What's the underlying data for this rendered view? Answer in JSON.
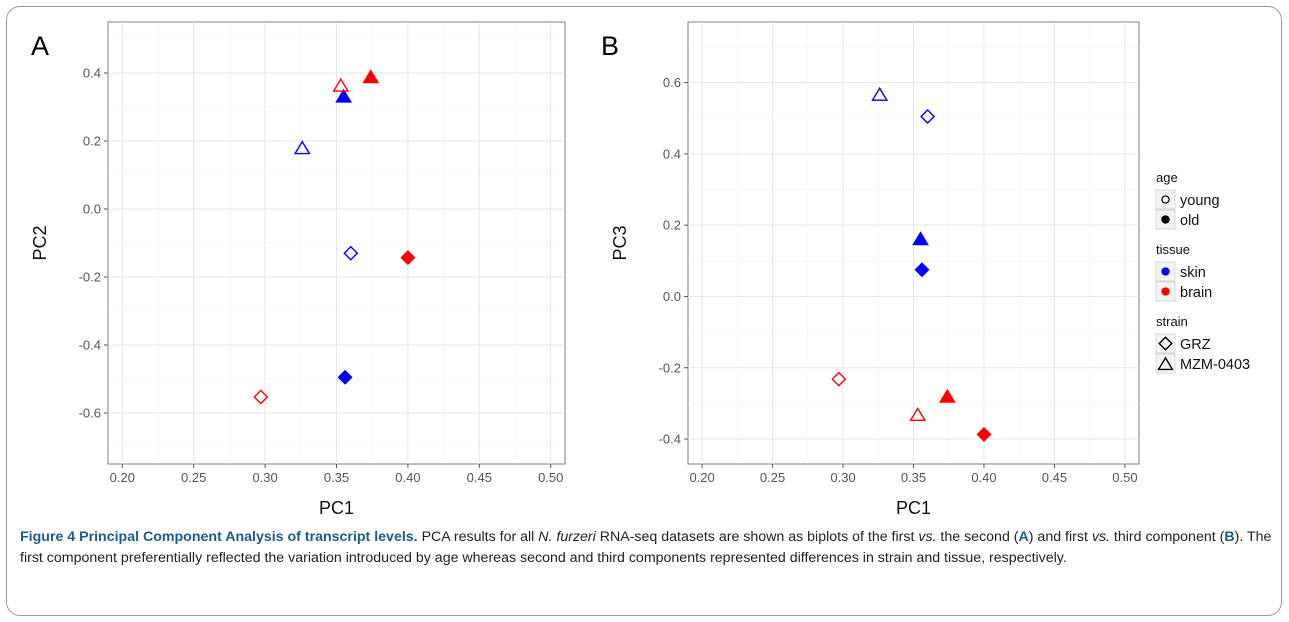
{
  "chart_data": [
    {
      "type": "scatter",
      "panel_label": "A",
      "xlabel": "PC1",
      "ylabel": "PC2",
      "xlim": [
        0.19,
        0.51
      ],
      "ylim": [
        -0.75,
        0.55
      ],
      "xticks": [
        "0.20",
        "0.25",
        "0.30",
        "0.35",
        "0.40",
        "0.45",
        "0.50"
      ],
      "yticks": [
        "-0.6",
        "-0.4",
        "-0.2",
        "0.0",
        "0.2",
        "0.4"
      ],
      "grid": true,
      "points": [
        {
          "x": 0.326,
          "y": 0.178,
          "age": "young",
          "tissue": "skin",
          "strain": "MZM-0403"
        },
        {
          "x": 0.36,
          "y": -0.13,
          "age": "young",
          "tissue": "skin",
          "strain": "GRZ"
        },
        {
          "x": 0.355,
          "y": 0.33,
          "age": "old",
          "tissue": "skin",
          "strain": "MZM-0403"
        },
        {
          "x": 0.356,
          "y": -0.495,
          "age": "old",
          "tissue": "skin",
          "strain": "GRZ"
        },
        {
          "x": 0.353,
          "y": 0.362,
          "age": "young",
          "tissue": "brain",
          "strain": "MZM-0403"
        },
        {
          "x": 0.297,
          "y": -0.553,
          "age": "young",
          "tissue": "brain",
          "strain": "GRZ"
        },
        {
          "x": 0.374,
          "y": 0.387,
          "age": "old",
          "tissue": "brain",
          "strain": "MZM-0403"
        },
        {
          "x": 0.4,
          "y": -0.143,
          "age": "old",
          "tissue": "brain",
          "strain": "GRZ"
        }
      ]
    },
    {
      "type": "scatter",
      "panel_label": "B",
      "xlabel": "PC1",
      "ylabel": "PC3",
      "xlim": [
        0.19,
        0.51
      ],
      "ylim": [
        -0.47,
        0.77
      ],
      "xticks": [
        "0.20",
        "0.25",
        "0.30",
        "0.35",
        "0.40",
        "0.45",
        "0.50"
      ],
      "yticks": [
        "-0.4",
        "-0.2",
        "0.0",
        "0.2",
        "0.4",
        "0.6"
      ],
      "grid": true,
      "points": [
        {
          "x": 0.326,
          "y": 0.565,
          "age": "young",
          "tissue": "skin",
          "strain": "MZM-0403"
        },
        {
          "x": 0.36,
          "y": 0.505,
          "age": "young",
          "tissue": "skin",
          "strain": "GRZ"
        },
        {
          "x": 0.355,
          "y": 0.16,
          "age": "old",
          "tissue": "skin",
          "strain": "MZM-0403"
        },
        {
          "x": 0.356,
          "y": 0.075,
          "age": "old",
          "tissue": "skin",
          "strain": "GRZ"
        },
        {
          "x": 0.353,
          "y": -0.333,
          "age": "young",
          "tissue": "brain",
          "strain": "MZM-0403"
        },
        {
          "x": 0.297,
          "y": -0.232,
          "age": "young",
          "tissue": "brain",
          "strain": "GRZ"
        },
        {
          "x": 0.374,
          "y": -0.282,
          "age": "old",
          "tissue": "brain",
          "strain": "MZM-0403"
        },
        {
          "x": 0.4,
          "y": -0.387,
          "age": "old",
          "tissue": "brain",
          "strain": "GRZ"
        }
      ]
    }
  ],
  "legend": {
    "placement": "right",
    "groups": [
      {
        "title": "age",
        "key": "age",
        "entries": [
          {
            "label": "young",
            "value": "young"
          },
          {
            "label": "old",
            "value": "old"
          }
        ]
      },
      {
        "title": "tissue",
        "key": "tissue",
        "entries": [
          {
            "label": "skin",
            "value": "skin"
          },
          {
            "label": "brain",
            "value": "brain"
          }
        ]
      },
      {
        "title": "strain",
        "key": "strain",
        "entries": [
          {
            "label": "GRZ",
            "value": "GRZ"
          },
          {
            "label": "MZM-0403",
            "value": "MZM-0403"
          }
        ]
      }
    ]
  },
  "colors": {
    "skin": "#0000ff",
    "brain": "#ff0000",
    "panel_bg": "#ffffff",
    "grid": "#e6e6e6",
    "axis_text": "#555555",
    "caption_accent": "#1c5c88"
  },
  "caption": {
    "title_part1": "Figure 4 Principal Component Analysis of transcript levels.",
    "text_1": " PCA results for all ",
    "species": "N. furzeri",
    "text_2": " RNA-seq datasets are shown as biplots of the first ",
    "vs1": "vs.",
    "text_3": " the second (",
    "ref_a": "A",
    "text_4": ") and first ",
    "vs2": "vs.",
    "text_5": " third component (",
    "ref_b": "B",
    "text_6": "). The first component preferentially reflected the variation introduced by age whereas second and third components represented differences in strain and tissue, respectively."
  }
}
